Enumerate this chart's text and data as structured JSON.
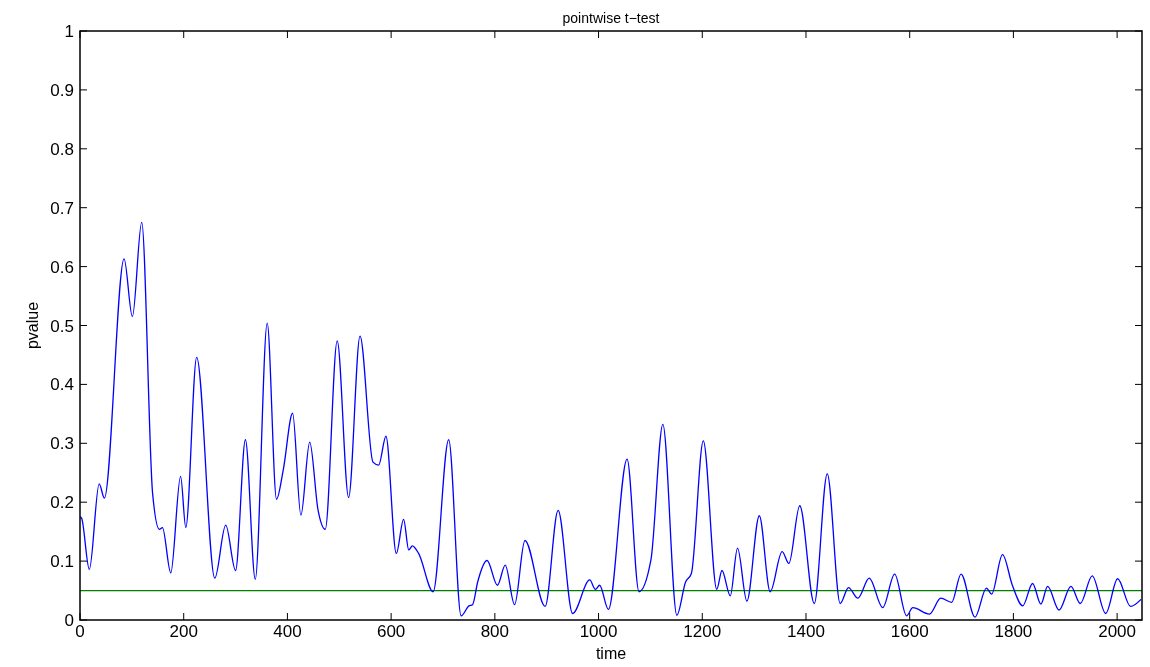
{
  "chart_data": {
    "type": "line",
    "title": "pointwise t−test",
    "xlabel": "time",
    "ylabel": "pvalue",
    "xlim": [
      0,
      2048
    ],
    "xticks": [
      0,
      200,
      400,
      600,
      800,
      1000,
      1200,
      1400,
      1600,
      1800,
      2000
    ],
    "ylim": [
      0,
      1
    ],
    "yticks": [
      0,
      0.1,
      0.2,
      0.3,
      0.4,
      0.5,
      0.6,
      0.7,
      0.8,
      0.9,
      1
    ],
    "grid": false,
    "marker": "none",
    "line_style": "solid",
    "ref_lines": [
      {
        "axis": "y",
        "value": 0.05,
        "color": "#008000"
      }
    ],
    "series": [
      {
        "color": "#0000ff",
        "x": [
          0,
          3,
          18,
          37,
          47,
          85,
          101,
          119,
          140,
          153,
          159,
          175,
          194,
          204,
          225,
          260,
          281,
          300,
          319,
          338,
          361,
          379,
          392,
          410,
          426,
          443,
          459,
          473,
          496,
          518,
          540,
          565,
          576,
          590,
          610,
          624,
          634,
          641,
          653,
          681,
          711,
          735,
          750,
          757,
          767,
          785,
          805,
          820,
          838,
          858,
          897,
          922,
          950,
          983,
          994,
          1002,
          1019,
          1055,
          1078,
          1101,
          1124,
          1151,
          1168,
          1179,
          1202,
          1228,
          1238,
          1254,
          1268,
          1286,
          1310,
          1331,
          1354,
          1367,
          1388,
          1416,
          1441,
          1466,
          1482,
          1500,
          1522,
          1548,
          1571,
          1594,
          1606,
          1638,
          1660,
          1681,
          1699,
          1726,
          1748,
          1758,
          1779,
          1798,
          1818,
          1837,
          1853,
          1866,
          1888,
          1911,
          1929,
          1952,
          1978,
          2001,
          2026,
          2046
        ],
        "values": [
          0.175,
          0.173,
          0.086,
          0.231,
          0.207,
          0.613,
          0.515,
          0.675,
          0.215,
          0.154,
          0.157,
          0.08,
          0.244,
          0.157,
          0.446,
          0.071,
          0.161,
          0.084,
          0.306,
          0.069,
          0.504,
          0.205,
          0.255,
          0.351,
          0.178,
          0.302,
          0.187,
          0.154,
          0.474,
          0.208,
          0.482,
          0.268,
          0.263,
          0.312,
          0.113,
          0.171,
          0.119,
          0.126,
          0.113,
          0.048,
          0.306,
          0.007,
          0.024,
          0.026,
          0.065,
          0.101,
          0.059,
          0.093,
          0.026,
          0.135,
          0.023,
          0.186,
          0.011,
          0.068,
          0.052,
          0.059,
          0.018,
          0.273,
          0.048,
          0.102,
          0.332,
          0.008,
          0.065,
          0.079,
          0.304,
          0.052,
          0.084,
          0.041,
          0.122,
          0.032,
          0.177,
          0.048,
          0.116,
          0.096,
          0.194,
          0.028,
          0.248,
          0.028,
          0.055,
          0.037,
          0.071,
          0.021,
          0.078,
          0.007,
          0.021,
          0.01,
          0.037,
          0.03,
          0.078,
          0.005,
          0.054,
          0.044,
          0.111,
          0.059,
          0.024,
          0.062,
          0.027,
          0.057,
          0.017,
          0.057,
          0.028,
          0.075,
          0.011,
          0.07,
          0.023,
          0.035
        ]
      }
    ]
  }
}
